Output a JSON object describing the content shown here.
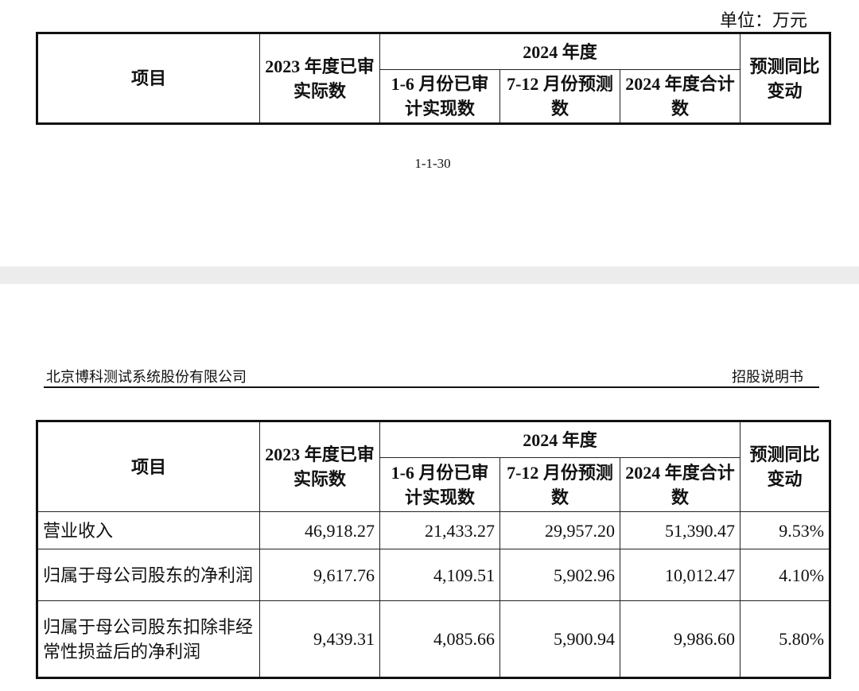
{
  "top_fragment": {
    "unit": "单位：万元",
    "headers": {
      "item": "项目",
      "y2023": "2023 年度已审实际数",
      "y2024": "2024 年度",
      "h1": "1-6 月份已审计实现数",
      "h2": "7-12 月份预测数",
      "total": "2024 年度合计数",
      "yoy": "预测同比变动"
    },
    "page_number": "1-1-30"
  },
  "next_page": {
    "company": "北京博科测试系统股份有限公司",
    "doc_type": "招股说明书",
    "headers": {
      "item": "项目",
      "y2023": "2023 年度已审实际数",
      "y2024": "2024 年度",
      "h1": "1-6 月份已审计实现数",
      "h2": "7-12 月份预测数",
      "total": "2024 年度合计数",
      "yoy": "预测同比变动"
    },
    "rows": [
      {
        "item": "营业收入",
        "y2023": "46,918.27",
        "h1": "21,433.27",
        "h2": "29,957.20",
        "total": "51,390.47",
        "yoy": "9.53%"
      },
      {
        "item": "归属于母公司股东的净利润",
        "y2023": "9,617.76",
        "h1": "4,109.51",
        "h2": "5,902.96",
        "total": "10,012.47",
        "yoy": "4.10%"
      },
      {
        "item": "归属于母公司股东扣除非经常性损益后的净利润",
        "y2023": "9,439.31",
        "h1": "4,085.66",
        "h2": "5,900.94",
        "total": "9,986.60",
        "yoy": "5.80%"
      }
    ]
  }
}
